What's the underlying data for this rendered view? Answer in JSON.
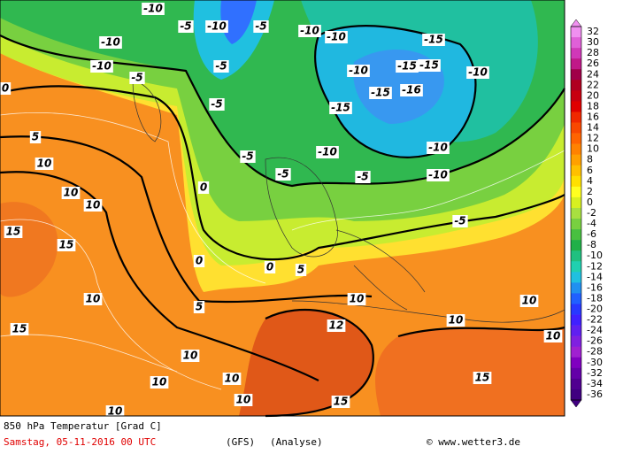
{
  "map": {
    "title": "850 hPa Temperatur [Grad C]",
    "date": "Samstag, 05-11-2016  00 UTC",
    "model": "(GFS)",
    "run": "(Analyse)",
    "credit": "© www.wetter3.de",
    "legend": {
      "values": [
        32,
        30,
        28,
        26,
        24,
        22,
        20,
        18,
        16,
        14,
        12,
        10,
        8,
        6,
        4,
        2,
        0,
        -2,
        -4,
        -6,
        -8,
        -10,
        -12,
        -14,
        -16,
        -18,
        -20,
        -22,
        -24,
        -26,
        -28,
        -30,
        -32,
        -34,
        -36
      ],
      "colors": [
        "#f090f0",
        "#e060d8",
        "#d038b8",
        "#c01888",
        "#a00048",
        "#b00020",
        "#c80010",
        "#e00000",
        "#f02800",
        "#f84800",
        "#ff6400",
        "#ff8200",
        "#ffa000",
        "#ffc000",
        "#ffe000",
        "#ffff20",
        "#d8f020",
        "#a8e040",
        "#78d040",
        "#48c040",
        "#20b048",
        "#20c080",
        "#20d0b0",
        "#20c0e0",
        "#2090f0",
        "#2060ff",
        "#2838ff",
        "#4020ff",
        "#6020f0",
        "#8020e0",
        "#a020d0",
        "#8000c0",
        "#6400a8",
        "#500090",
        "#400080"
      ]
    },
    "labels": [
      -10,
      -10,
      -10,
      -5,
      -10,
      -5,
      -5,
      -5,
      -5,
      -10,
      -10,
      -10,
      -15,
      -15,
      -15,
      -15,
      -16,
      -15,
      -10,
      -10,
      -10,
      -5,
      -10,
      -5,
      -5,
      -5,
      0,
      0,
      5,
      5,
      10,
      15,
      10,
      10,
      10,
      15,
      15,
      10,
      10,
      10,
      10,
      10,
      10,
      10,
      15,
      15,
      12,
      10,
      10,
      0,
      5,
      0
    ]
  }
}
